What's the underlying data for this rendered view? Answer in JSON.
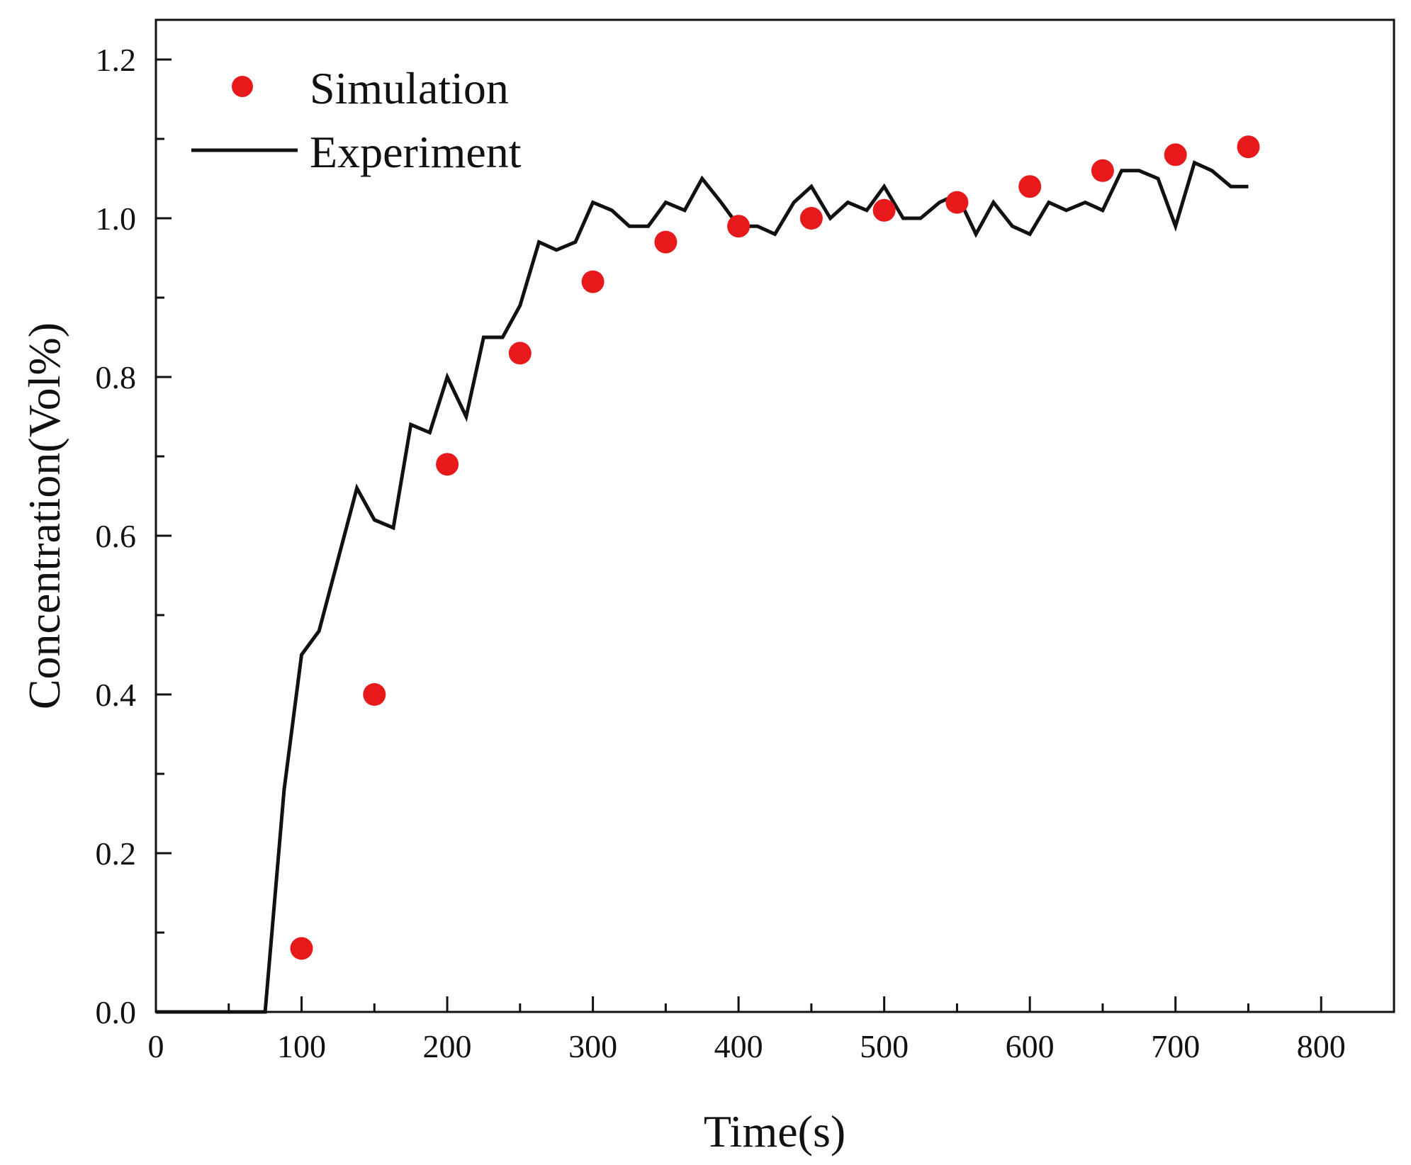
{
  "chart_data": {
    "type": "line",
    "xlabel": "Time(s)",
    "ylabel": "Concentration(Vol%)",
    "xlim": [
      0,
      850
    ],
    "ylim": [
      0,
      1.25
    ],
    "x_ticks": [
      "0",
      "100",
      "200",
      "300",
      "400",
      "500",
      "600",
      "700",
      "800"
    ],
    "x_tick_values": [
      0,
      100,
      200,
      300,
      400,
      500,
      600,
      700,
      800
    ],
    "y_ticks": [
      "0.0",
      "0.2",
      "0.4",
      "0.6",
      "0.8",
      "1.0",
      "1.2"
    ],
    "y_tick_values": [
      0,
      0.2,
      0.4,
      0.6,
      0.8,
      1.0,
      1.2
    ],
    "grid": false,
    "legend_position": "top-left",
    "series": [
      {
        "name": "Simulation",
        "kind": "scatter",
        "color": "#e8191a",
        "x": [
          100,
          150,
          200,
          250,
          300,
          350,
          400,
          450,
          500,
          550,
          600,
          650,
          700,
          750
        ],
        "y": [
          0.08,
          0.4,
          0.69,
          0.83,
          0.92,
          0.97,
          0.99,
          1.0,
          1.01,
          1.02,
          1.04,
          1.06,
          1.08,
          1.09
        ]
      },
      {
        "name": "Experiment",
        "kind": "line",
        "color": "#111111",
        "x": [
          0,
          75,
          88,
          100,
          112,
          125,
          138,
          150,
          163,
          175,
          188,
          200,
          213,
          225,
          238,
          250,
          263,
          275,
          288,
          300,
          313,
          325,
          338,
          350,
          363,
          375,
          388,
          400,
          413,
          425,
          438,
          450,
          463,
          475,
          488,
          500,
          513,
          525,
          538,
          550,
          563,
          575,
          588,
          600,
          613,
          625,
          638,
          650,
          663,
          675,
          688,
          700,
          713,
          725,
          738,
          750
        ],
        "y": [
          0.0,
          0.0,
          0.28,
          0.45,
          0.48,
          0.57,
          0.66,
          0.62,
          0.61,
          0.74,
          0.73,
          0.8,
          0.75,
          0.85,
          0.85,
          0.89,
          0.97,
          0.96,
          0.97,
          1.02,
          1.01,
          0.99,
          0.99,
          1.02,
          1.01,
          1.05,
          1.02,
          0.99,
          0.99,
          0.98,
          1.02,
          1.04,
          1.0,
          1.02,
          1.01,
          1.04,
          1.0,
          1.0,
          1.02,
          1.03,
          0.98,
          1.02,
          0.99,
          0.98,
          1.02,
          1.01,
          1.02,
          1.01,
          1.06,
          1.06,
          1.05,
          0.99,
          1.07,
          1.06,
          1.04,
          1.04
        ]
      }
    ]
  }
}
